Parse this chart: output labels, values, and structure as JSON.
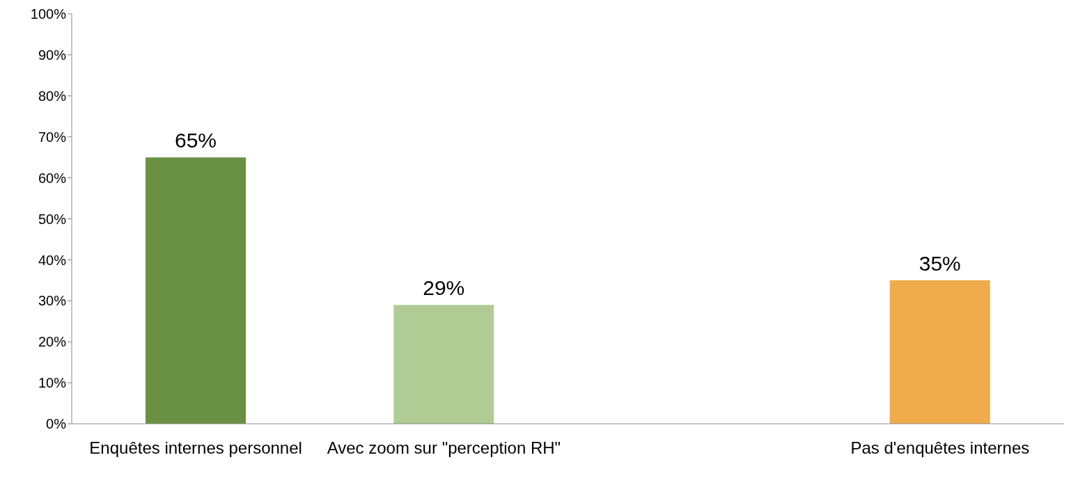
{
  "chart_data": {
    "type": "bar",
    "categories": [
      "Enquêtes internes personnel",
      "Avec zoom sur \"perception RH\"",
      null,
      "Pas d'enquêtes internes"
    ],
    "values": [
      65,
      29,
      null,
      35
    ],
    "colors": [
      "#6a9044",
      "#b0cc94",
      "#f0ac4a",
      "#f0ac4a"
    ],
    "value_labels": [
      "65%",
      "29%",
      null,
      "35%"
    ],
    "ylim": [
      0,
      100
    ],
    "yticks": [
      {
        "value": 0,
        "label": "0%"
      },
      {
        "value": 10,
        "label": "10%"
      },
      {
        "value": 20,
        "label": "20%"
      },
      {
        "value": 30,
        "label": "30%"
      },
      {
        "value": 40,
        "label": "40%"
      },
      {
        "value": 50,
        "label": "50%"
      },
      {
        "value": 60,
        "label": "60%"
      },
      {
        "value": 70,
        "label": "70%"
      },
      {
        "value": 80,
        "label": "80%"
      },
      {
        "value": 90,
        "label": "90%"
      },
      {
        "value": 100,
        "label": "100%"
      }
    ],
    "grid": false,
    "legend": false
  }
}
